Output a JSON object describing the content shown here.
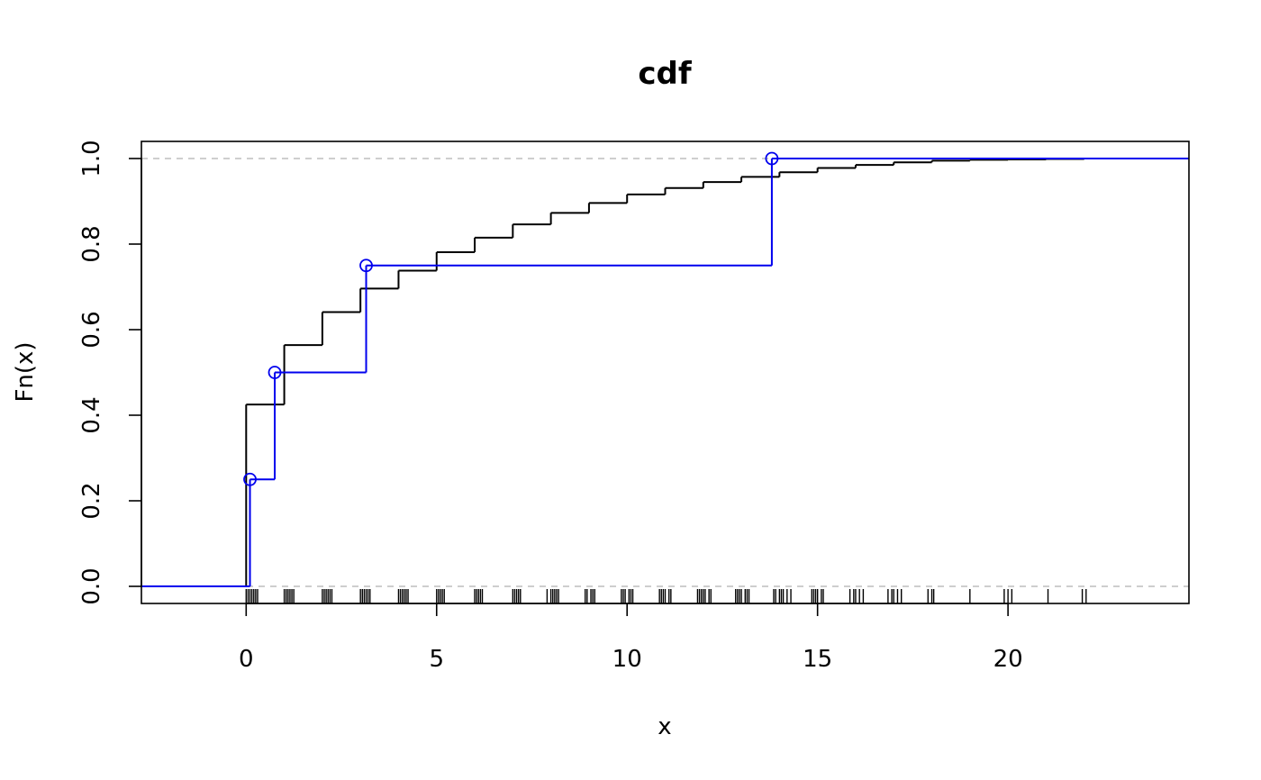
{
  "chart_data": {
    "type": "line",
    "title": "cdf",
    "xlabel": "x",
    "ylabel": "Fn(x)",
    "xlim": [
      -2.75,
      24.75
    ],
    "ylim": [
      -0.04,
      1.04
    ],
    "x_ticks": [
      0,
      5,
      10,
      15,
      20
    ],
    "y_ticks": [
      0.0,
      0.2,
      0.4,
      0.6,
      0.8,
      1.0
    ],
    "x_tick_labels": [
      "0",
      "5",
      "10",
      "15",
      "20"
    ],
    "y_tick_labels": [
      "0.0",
      "0.2",
      "0.4",
      "0.6",
      "0.8",
      "1.0"
    ],
    "reference_lines": [
      0,
      1
    ],
    "grid": false,
    "legend": "none",
    "series": [
      {
        "color": "#000000",
        "style": "step",
        "x": [
          0,
          1,
          2,
          3,
          4,
          5,
          6,
          7,
          8,
          9,
          10,
          11,
          12,
          13,
          14,
          15,
          16,
          17,
          18,
          19,
          20,
          21,
          22
        ],
        "y": [
          0.425,
          0.564,
          0.641,
          0.696,
          0.738,
          0.781,
          0.815,
          0.846,
          0.873,
          0.896,
          0.916,
          0.931,
          0.945,
          0.957,
          0.968,
          0.978,
          0.985,
          0.991,
          0.995,
          0.997,
          0.998,
          0.999,
          1.0
        ]
      },
      {
        "color": "#0000ee",
        "style": "step",
        "markers": "open-circle",
        "x": [
          0.1,
          0.75,
          3.15,
          13.8
        ],
        "y": [
          0.25,
          0.5,
          0.75,
          1.0
        ]
      }
    ],
    "rug": [
      0,
      0.05,
      0.1,
      0.15,
      0.2,
      0.25,
      0.3,
      1,
      1.05,
      1.1,
      1.15,
      1.2,
      1.25,
      2,
      2.05,
      2.1,
      2.15,
      2.2,
      2.25,
      3,
      3.05,
      3.1,
      3.15,
      3.2,
      3.25,
      4,
      4.05,
      4.1,
      4.15,
      4.2,
      4.25,
      5,
      5.05,
      5.1,
      5.15,
      5.2,
      6,
      6.05,
      6.1,
      6.15,
      6.2,
      7,
      7.05,
      7.1,
      7.15,
      7.2,
      7.9,
      8.0,
      8.05,
      8.1,
      8.15,
      8.2,
      8.9,
      8.95,
      9.05,
      9.1,
      9.15,
      9.85,
      9.9,
      9.95,
      10.05,
      10.1,
      10.15,
      10.85,
      10.9,
      10.95,
      11.0,
      11.1,
      11.15,
      11.85,
      11.9,
      11.95,
      12.0,
      12.05,
      12.15,
      12.2,
      12.85,
      12.9,
      12.95,
      13.0,
      13.1,
      13.15,
      13.2,
      13.85,
      13.9,
      14.0,
      14.05,
      14.1,
      14.2,
      14.3,
      14.85,
      14.9,
      14.95,
      15.0,
      15.1,
      15.15,
      15.85,
      15.95,
      16.0,
      16.1,
      16.2,
      16.85,
      16.95,
      17.0,
      17.1,
      17.2,
      17.9,
      18.0,
      18.05,
      19.0,
      19.9,
      20.0,
      20.1,
      21.05,
      21.95,
      22.05
    ]
  }
}
